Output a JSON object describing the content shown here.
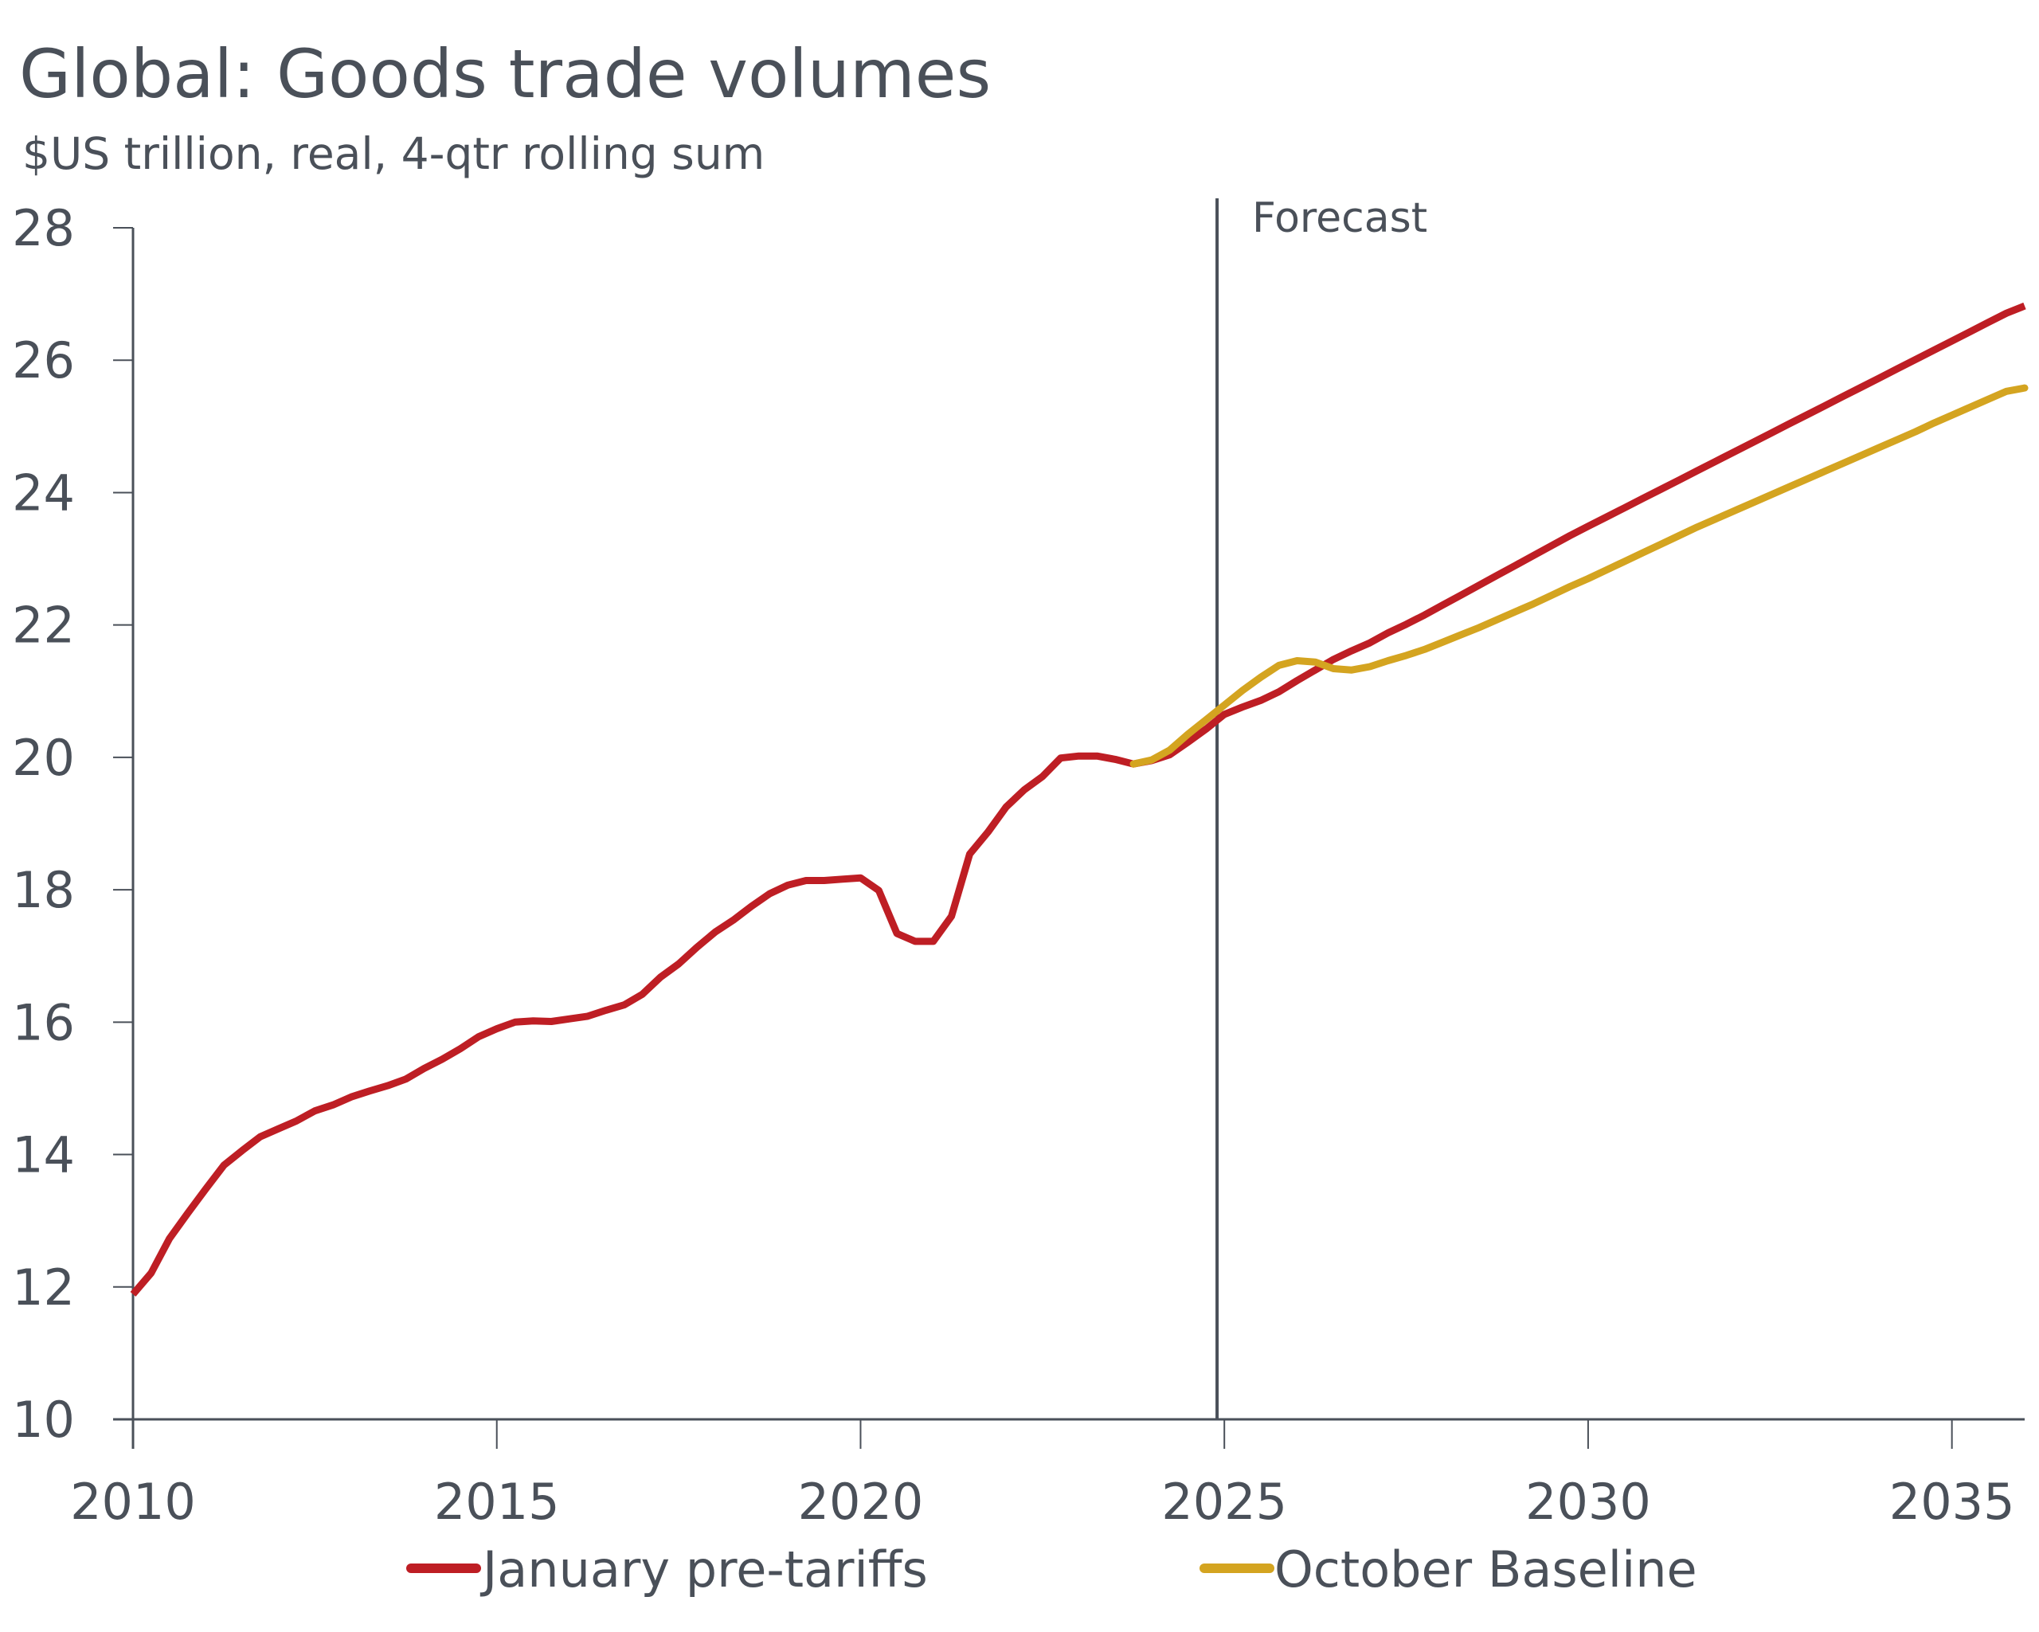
{
  "chart_data": {
    "type": "line",
    "title": "Global: Goods trade volumes",
    "subtitle": "$US trillion, real, 4-qtr rolling sum",
    "xlabel": "",
    "ylabel": "",
    "xlim": [
      2010,
      2036
    ],
    "ylim": [
      10,
      28
    ],
    "x_ticks": [
      2010,
      2015,
      2020,
      2025,
      2030,
      2035
    ],
    "x_tick_labels": [
      "2010",
      "2015",
      "2020",
      "2025",
      "2030",
      "2035"
    ],
    "y_ticks": [
      10,
      12,
      14,
      16,
      18,
      20,
      22,
      24,
      26,
      28
    ],
    "y_tick_labels": [
      "10",
      "12",
      "14",
      "16",
      "18",
      "20",
      "22",
      "24",
      "26",
      "28"
    ],
    "grid": false,
    "legend_position": "bottom",
    "annotations": [
      {
        "type": "vertical-line",
        "x": 2024.9,
        "label": "Forecast"
      }
    ],
    "series": [
      {
        "name": "January pre-tariffs",
        "color": "#be1e24",
        "x_start": 2010.0,
        "x_step": 0.25,
        "values": [
          11.89,
          12.21,
          12.73,
          13.11,
          13.48,
          13.84,
          14.06,
          14.27,
          14.39,
          14.51,
          14.66,
          14.75,
          14.87,
          14.96,
          15.04,
          15.14,
          15.3,
          15.44,
          15.6,
          15.78,
          15.9,
          16.0,
          16.02,
          16.01,
          16.05,
          16.09,
          16.18,
          16.26,
          16.42,
          16.68,
          16.88,
          17.13,
          17.36,
          17.54,
          17.75,
          17.94,
          18.07,
          18.14,
          18.14,
          18.16,
          18.18,
          17.99,
          17.34,
          17.22,
          17.22,
          17.6,
          18.54,
          18.87,
          19.25,
          19.51,
          19.71,
          19.99,
          20.02,
          20.02,
          19.97,
          19.9,
          19.95,
          20.04,
          20.23,
          20.43,
          20.65,
          20.76,
          20.86,
          20.99,
          21.16,
          21.32,
          21.48,
          21.61,
          21.73,
          21.88,
          22.01,
          22.15,
          22.3,
          22.45,
          22.6,
          22.75,
          22.9,
          23.05,
          23.2,
          23.35,
          23.49,
          23.63,
          23.77,
          23.91,
          24.05,
          24.19,
          24.33,
          24.47,
          24.61,
          24.75,
          24.89,
          25.03,
          25.17,
          25.31,
          25.45,
          25.59,
          25.73,
          25.87,
          26.01,
          26.15,
          26.29,
          26.43,
          26.57,
          26.71,
          26.82
        ]
      },
      {
        "name": "October Baseline",
        "color": "#d4a420",
        "x_start": 2023.75,
        "x_step": 0.25,
        "values": [
          19.9,
          19.96,
          20.11,
          20.35,
          20.57,
          20.79,
          21.01,
          21.21,
          21.39,
          21.46,
          21.44,
          21.34,
          21.32,
          21.37,
          21.46,
          21.54,
          21.63,
          21.74,
          21.85,
          21.96,
          22.08,
          22.2,
          22.32,
          22.45,
          22.58,
          22.7,
          22.83,
          22.96,
          23.09,
          23.22,
          23.35,
          23.48,
          23.6,
          23.72,
          23.84,
          23.96,
          24.08,
          24.2,
          24.32,
          24.44,
          24.56,
          24.68,
          24.8,
          24.92,
          25.05,
          25.17,
          25.29,
          25.41,
          25.53,
          25.58
        ]
      }
    ]
  },
  "colors": {
    "text": "#4a5059",
    "axis": "#4a5059",
    "background": "#ffffff"
  }
}
